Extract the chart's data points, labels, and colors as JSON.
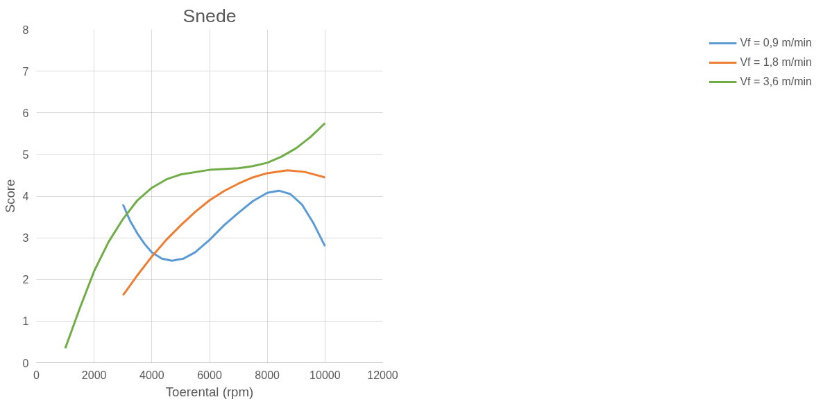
{
  "chart_data": {
    "type": "line",
    "title": "Snede",
    "xlabel": "Toerental (rpm)",
    "ylabel": "Score",
    "xlim": [
      0,
      12000
    ],
    "xticks": [
      0,
      2000,
      4000,
      6000,
      8000,
      10000,
      12000
    ],
    "ylim": [
      0,
      8
    ],
    "yticks": [
      0,
      1,
      2,
      3,
      4,
      5,
      6,
      7,
      8
    ],
    "grid": true,
    "legend": "right",
    "marker": "none",
    "line_style": "solid",
    "series": [
      {
        "name": "Vf = 0,9 m/min",
        "color": "#5b9bd5",
        "x": [
          3000,
          3250,
          3500,
          3750,
          4000,
          4350,
          4700,
          5100,
          5500,
          6000,
          6500,
          7000,
          7500,
          8000,
          8400,
          8800,
          9200,
          9600,
          10000
        ],
        "values": [
          3.8,
          3.4,
          3.1,
          2.85,
          2.65,
          2.5,
          2.45,
          2.5,
          2.65,
          2.95,
          3.3,
          3.6,
          3.88,
          4.08,
          4.13,
          4.05,
          3.8,
          3.35,
          2.8
        ]
      },
      {
        "name": "Vf = 1,8 m/min",
        "color": "#ed7d31",
        "x": [
          3000,
          3500,
          4000,
          4500,
          5000,
          5500,
          6000,
          6500,
          7000,
          7500,
          8000,
          8700,
          9300,
          10000
        ],
        "values": [
          1.62,
          2.1,
          2.55,
          2.95,
          3.3,
          3.62,
          3.9,
          4.12,
          4.3,
          4.45,
          4.55,
          4.62,
          4.58,
          4.45
        ]
      },
      {
        "name": "Vf = 3,6 m/min",
        "color": "#70ad47",
        "x": [
          1000,
          1500,
          2000,
          2500,
          3000,
          3500,
          4000,
          4500,
          5000,
          6000,
          7000,
          7500,
          8000,
          8500,
          9000,
          9500,
          10000
        ],
        "values": [
          0.35,
          1.3,
          2.2,
          2.9,
          3.45,
          3.9,
          4.2,
          4.4,
          4.52,
          4.63,
          4.67,
          4.72,
          4.8,
          4.95,
          5.15,
          5.42,
          5.75
        ]
      }
    ]
  }
}
